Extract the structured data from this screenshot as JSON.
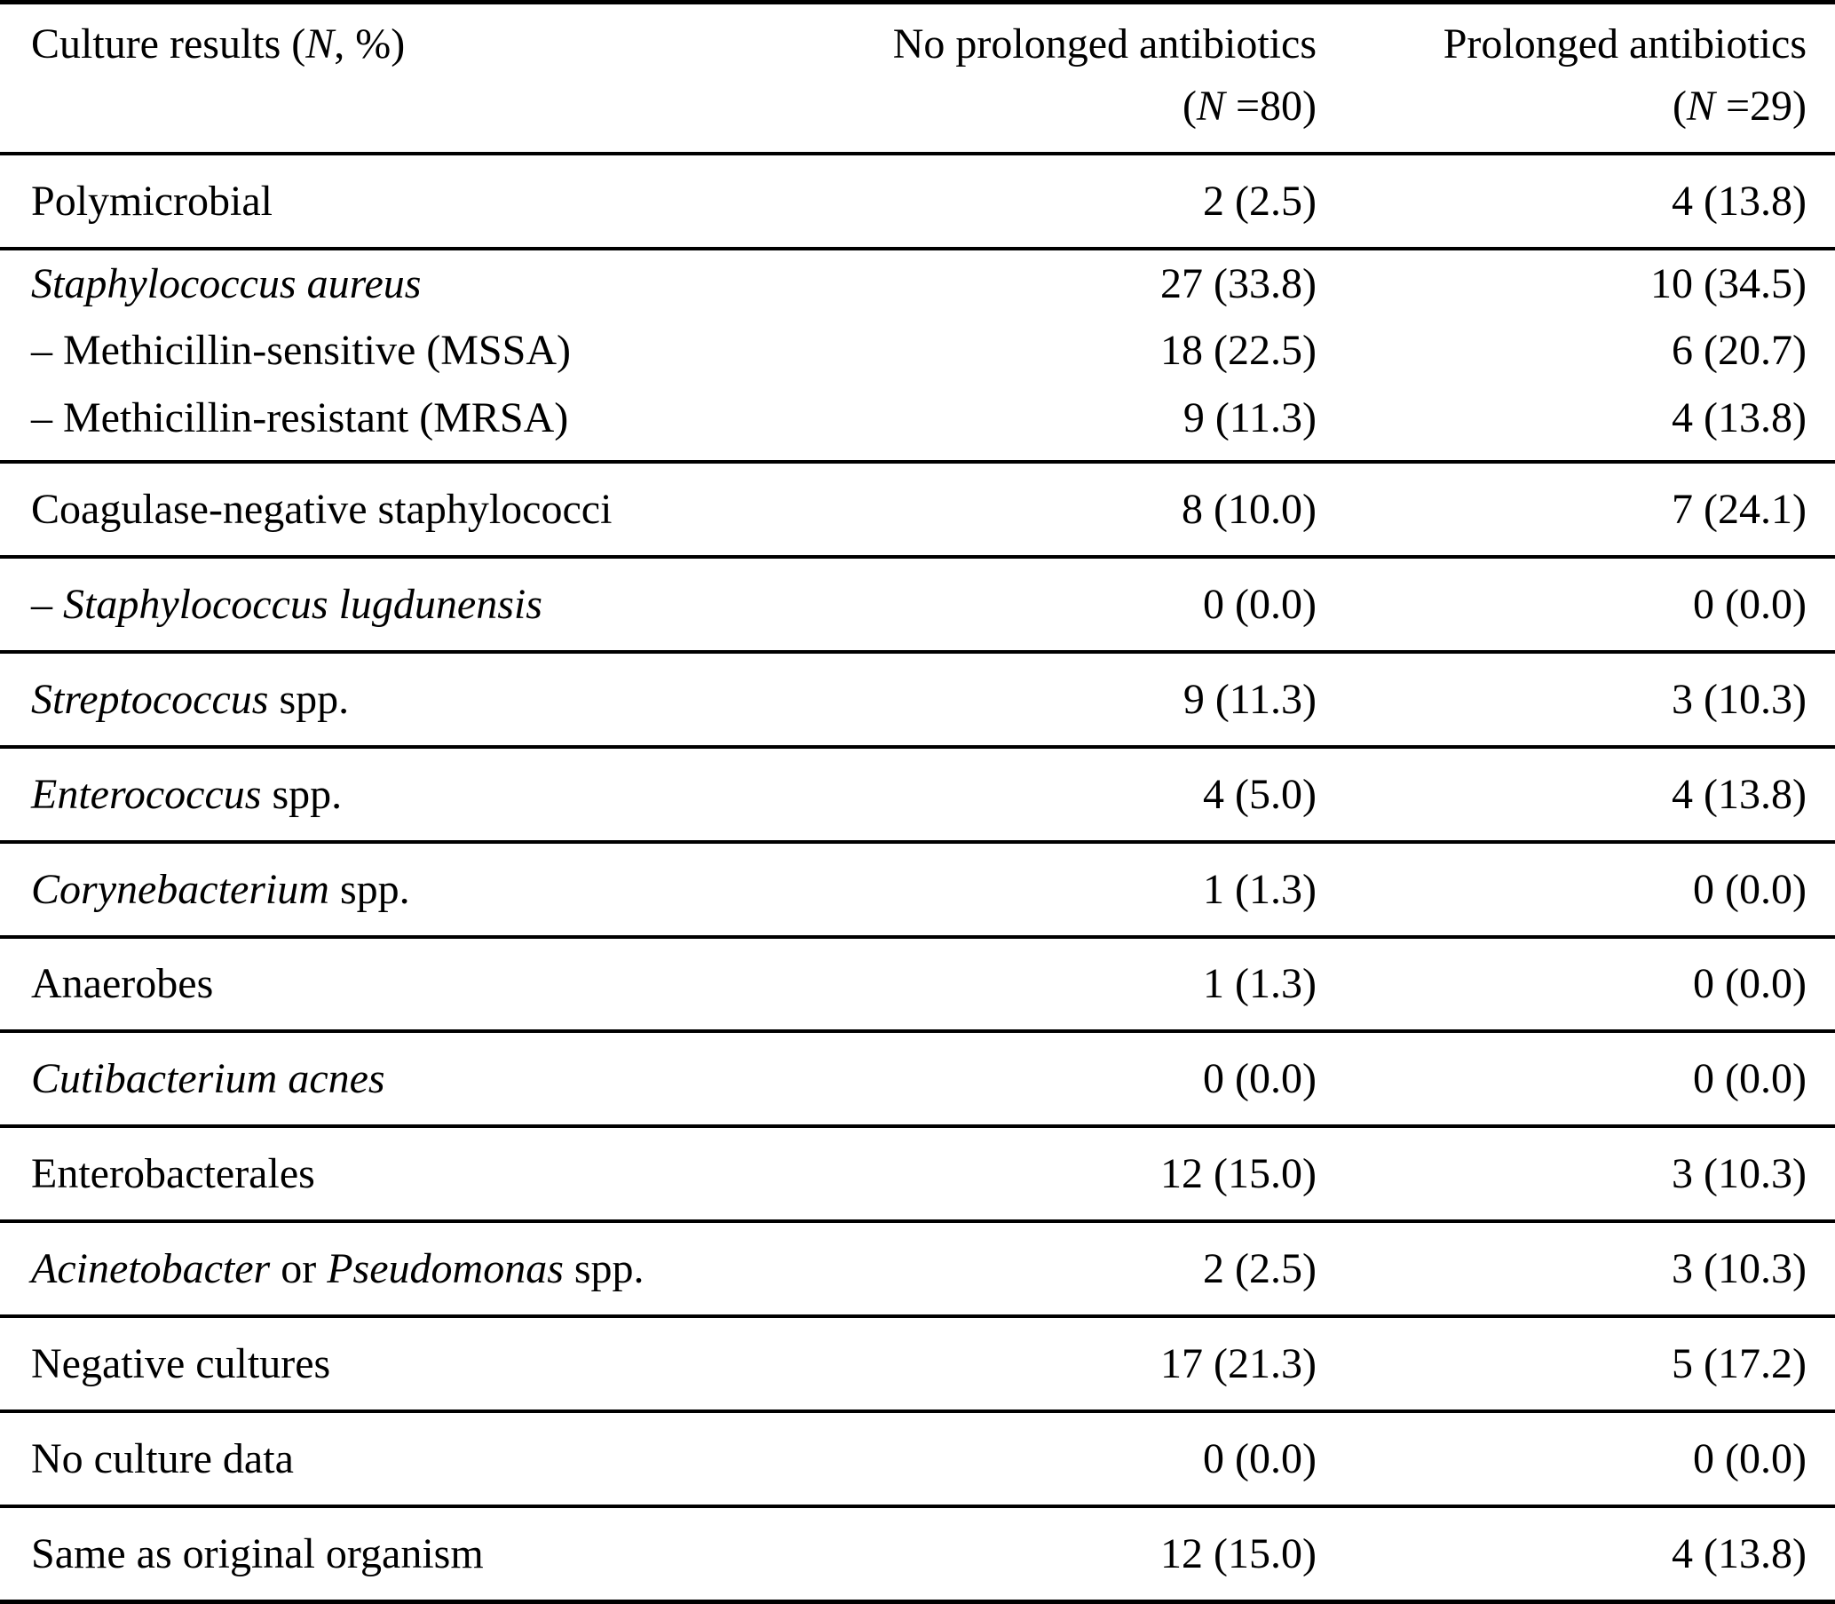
{
  "page": {
    "background_color": "#ffffff",
    "text_color": "#000000"
  },
  "table": {
    "header": {
      "col1_parts": [
        {
          "t": "Culture results (",
          "i": false
        },
        {
          "t": "N",
          "i": true
        },
        {
          "t": ", %)",
          "i": false
        }
      ],
      "col2_line1": "No prolonged antibiotics",
      "col2_line2_parts": [
        {
          "t": "(",
          "i": false
        },
        {
          "t": "N",
          "i": true
        },
        {
          "t": " =80)",
          "i": false
        }
      ],
      "col3_line1": "Prolonged antibiotics",
      "col3_line2_parts": [
        {
          "t": "(",
          "i": false
        },
        {
          "t": "N",
          "i": true
        },
        {
          "t": " =29)",
          "i": false
        }
      ]
    },
    "rows": [
      {
        "lines": [
          {
            "label_parts": [
              {
                "t": "Polymicrobial",
                "i": false
              }
            ],
            "no_prolonged": "2 (2.5)",
            "prolonged": "4 (13.8)"
          }
        ]
      },
      {
        "lines": [
          {
            "label_parts": [
              {
                "t": "Staphylococcus aureus",
                "i": true
              }
            ],
            "no_prolonged": "27 (33.8)",
            "prolonged": "10 (34.5)"
          },
          {
            "label_parts": [
              {
                "t": "– Methicillin-sensitive (MSSA)",
                "i": false
              }
            ],
            "no_prolonged": "18 (22.5)",
            "prolonged": "6 (20.7)"
          },
          {
            "label_parts": [
              {
                "t": "– Methicillin-resistant (MRSA)",
                "i": false
              }
            ],
            "no_prolonged": "9 (11.3)",
            "prolonged": "4 (13.8)"
          }
        ]
      },
      {
        "lines": [
          {
            "label_parts": [
              {
                "t": "Coagulase-negative staphylococci",
                "i": false
              }
            ],
            "no_prolonged": "8 (10.0)",
            "prolonged": "7 (24.1)"
          }
        ]
      },
      {
        "lines": [
          {
            "label_parts": [
              {
                "t": "– ",
                "i": false
              },
              {
                "t": "Staphylococcus lugdunensis",
                "i": true
              }
            ],
            "no_prolonged": "0 (0.0)",
            "prolonged": "0 (0.0)"
          }
        ]
      },
      {
        "lines": [
          {
            "label_parts": [
              {
                "t": "Streptococcus",
                "i": true
              },
              {
                "t": " spp.",
                "i": false
              }
            ],
            "no_prolonged": "9 (11.3)",
            "prolonged": "3 (10.3)"
          }
        ]
      },
      {
        "lines": [
          {
            "label_parts": [
              {
                "t": "Enterococcus",
                "i": true
              },
              {
                "t": " spp.",
                "i": false
              }
            ],
            "no_prolonged": "4 (5.0)",
            "prolonged": "4 (13.8)"
          }
        ]
      },
      {
        "lines": [
          {
            "label_parts": [
              {
                "t": "Corynebacterium",
                "i": true
              },
              {
                "t": " spp.",
                "i": false
              }
            ],
            "no_prolonged": "1 (1.3)",
            "prolonged": "0 (0.0)"
          }
        ]
      },
      {
        "lines": [
          {
            "label_parts": [
              {
                "t": "Anaerobes",
                "i": false
              }
            ],
            "no_prolonged": "1 (1.3)",
            "prolonged": "0 (0.0)"
          }
        ]
      },
      {
        "lines": [
          {
            "label_parts": [
              {
                "t": "Cutibacterium acnes",
                "i": true
              }
            ],
            "no_prolonged": "0 (0.0)",
            "prolonged": "0 (0.0)"
          }
        ]
      },
      {
        "lines": [
          {
            "label_parts": [
              {
                "t": "Enterobacterales",
                "i": false
              }
            ],
            "no_prolonged": "12 (15.0)",
            "prolonged": "3 (10.3)"
          }
        ]
      },
      {
        "lines": [
          {
            "label_parts": [
              {
                "t": "Acinetobacter",
                "i": true
              },
              {
                "t": " or ",
                "i": false
              },
              {
                "t": "Pseudomonas",
                "i": true
              },
              {
                "t": " spp.",
                "i": false
              }
            ],
            "no_prolonged": "2 (2.5)",
            "prolonged": "3 (10.3)"
          }
        ]
      },
      {
        "lines": [
          {
            "label_parts": [
              {
                "t": "Negative cultures",
                "i": false
              }
            ],
            "no_prolonged": "17 (21.3)",
            "prolonged": "5 (17.2)"
          }
        ]
      },
      {
        "lines": [
          {
            "label_parts": [
              {
                "t": "No culture data",
                "i": false
              }
            ],
            "no_prolonged": "0 (0.0)",
            "prolonged": "0 (0.0)"
          }
        ]
      },
      {
        "lines": [
          {
            "label_parts": [
              {
                "t": "Same as original organism",
                "i": false
              }
            ],
            "no_prolonged": "12 (15.0)",
            "prolonged": "4 (13.8)"
          }
        ]
      }
    ]
  }
}
